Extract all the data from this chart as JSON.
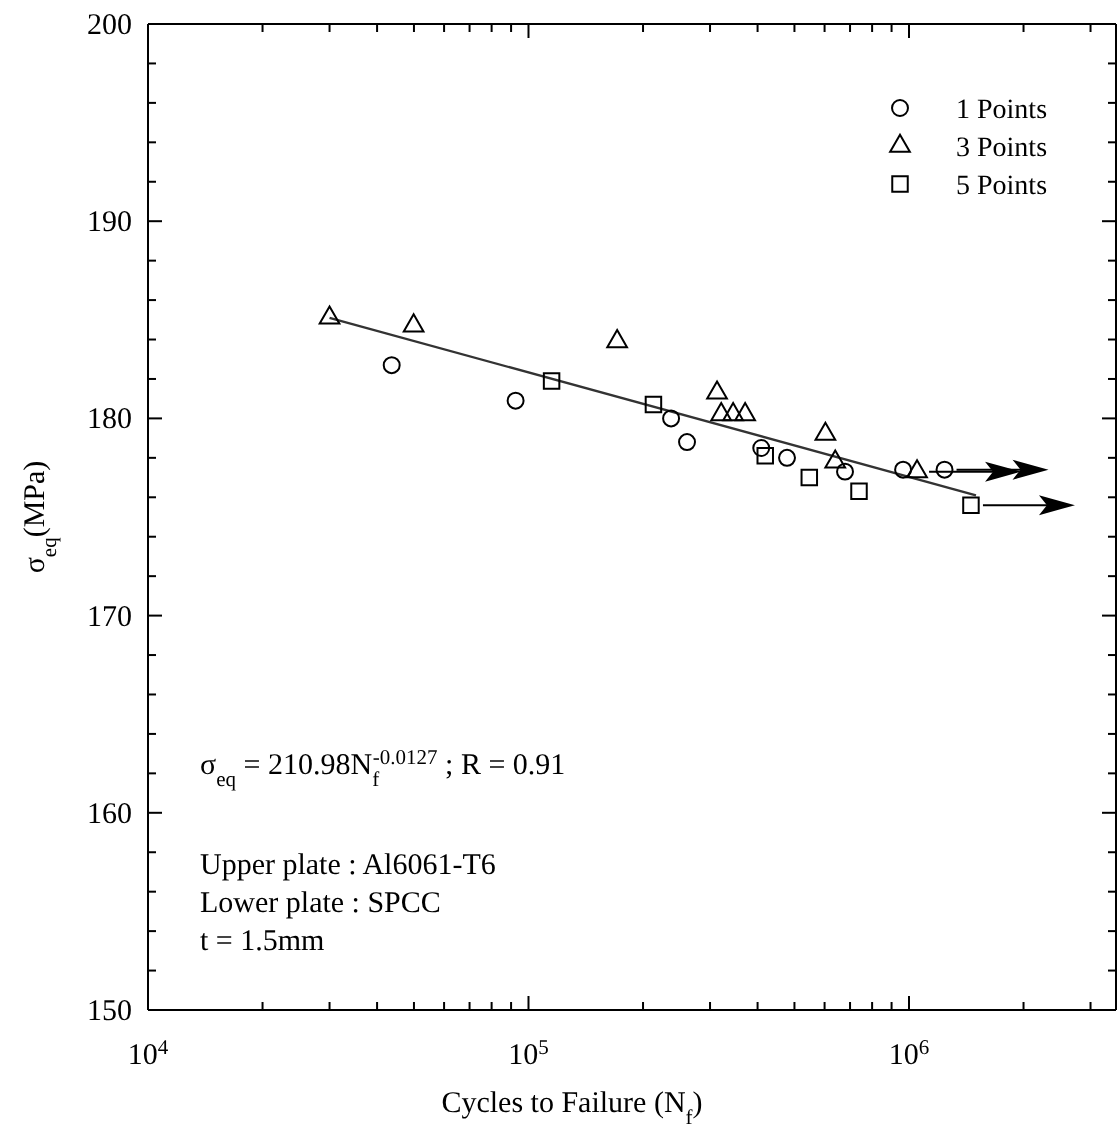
{
  "chart_data": {
    "type": "scatter",
    "xlabel": "Cycles to Failure (N$_{f}$)",
    "ylabel": "σ$_{eq}$(MPa)",
    "log": "x",
    "xlim": [
      10000,
      3500000
    ],
    "ylim": [
      150,
      200
    ],
    "xticks": [
      {
        "value": 10000,
        "label": "10$^{4}$"
      },
      {
        "value": 20000,
        "label": null
      },
      {
        "value": 30000,
        "label": null
      },
      {
        "value": 40000,
        "label": null
      },
      {
        "value": 50000,
        "label": null
      },
      {
        "value": 60000,
        "label": null
      },
      {
        "value": 70000,
        "label": null
      },
      {
        "value": 80000,
        "label": null
      },
      {
        "value": 90000,
        "label": null
      },
      {
        "value": 100000,
        "label": "10$^{5}$"
      },
      {
        "value": 200000,
        "label": null
      },
      {
        "value": 300000,
        "label": null
      },
      {
        "value": 400000,
        "label": null
      },
      {
        "value": 500000,
        "label": null
      },
      {
        "value": 600000,
        "label": null
      },
      {
        "value": 700000,
        "label": null
      },
      {
        "value": 800000,
        "label": null
      },
      {
        "value": 900000,
        "label": null
      },
      {
        "value": 1000000,
        "label": "10$^{6}$"
      },
      {
        "value": 2000000,
        "label": null
      },
      {
        "value": 3000000,
        "label": null
      }
    ],
    "yticks": [
      150,
      {
        "value": 152,
        "label": null
      },
      {
        "value": 154,
        "label": null
      },
      {
        "value": 156,
        "label": null
      },
      {
        "value": 158,
        "label": null
      },
      160,
      {
        "value": 162,
        "label": null
      },
      {
        "value": 164,
        "label": null
      },
      {
        "value": 166,
        "label": null
      },
      {
        "value": 168,
        "label": null
      },
      170,
      {
        "value": 172,
        "label": null
      },
      {
        "value": 174,
        "label": null
      },
      {
        "value": 176,
        "label": null
      },
      {
        "value": 178,
        "label": null
      },
      180,
      {
        "value": 182,
        "label": null
      },
      {
        "value": 184,
        "label": null
      },
      {
        "value": 186,
        "label": null
      },
      {
        "value": 188,
        "label": null
      },
      190,
      {
        "value": 192,
        "label": null
      },
      {
        "value": 194,
        "label": null
      },
      {
        "value": 196,
        "label": null
      },
      {
        "value": 198,
        "label": null
      },
      200
    ],
    "grid": false,
    "legend": "top right",
    "series": [
      {
        "name": "1 Points",
        "color": "#000000",
        "marker": "circle",
        "x": [
          43700,
          92500,
          237000,
          261000,
          409000,
          478000,
          679000,
          965000,
          1240000
        ],
        "values": [
          182.7,
          180.9,
          180.0,
          178.8,
          178.5,
          178.0,
          177.3,
          177.4,
          177.4
        ]
      },
      {
        "name": "3 Points",
        "color": "#000000",
        "marker": "triangle",
        "x": [
          30000,
          49900,
          171000,
          313000,
          321000,
          345000,
          371000,
          603000,
          640000,
          1050000
        ],
        "values": [
          185.1,
          184.7,
          183.9,
          181.3,
          180.2,
          180.2,
          180.2,
          179.2,
          177.8,
          177.3
        ]
      },
      {
        "name": "5 Points",
        "color": "#000000",
        "marker": "square",
        "x": [
          115000,
          213000,
          419000,
          547000,
          739000,
          1455000
        ],
        "values": [
          181.9,
          180.7,
          178.1,
          177.0,
          176.3,
          175.6
        ]
      },
      {
        "type": "line",
        "color": "#333333",
        "marker": "none",
        "x": [
          30000,
          1500000
        ],
        "values": [
          185.1,
          176.1
        ]
      }
    ],
    "annotations": [
      "σ$_{eq}$ = 210.98N$_{f}$$^{-0.0127}$ ; R = 0.91",
      "Upper plate : Al6061-T6",
      "Lower plate : SPCC",
      "t = 1.5mm"
    ]
  }
}
